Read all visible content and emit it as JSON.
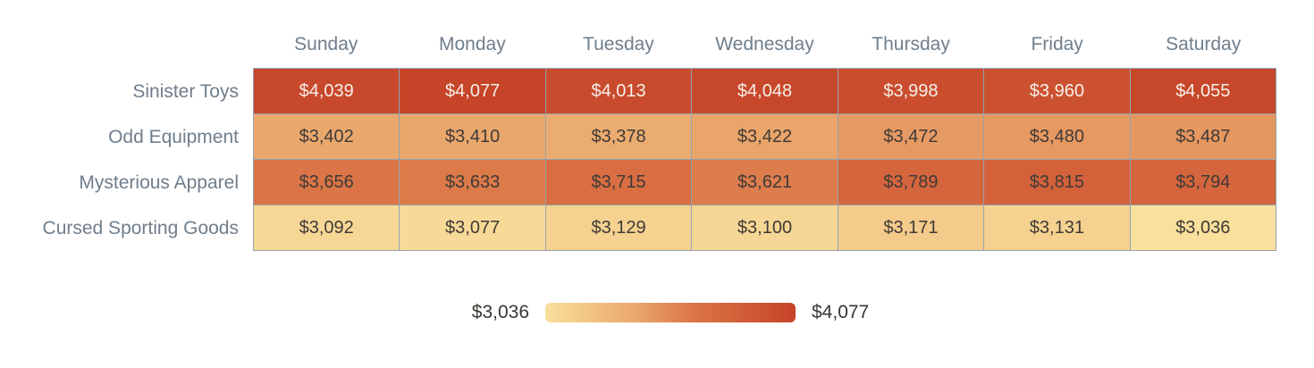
{
  "chart_data": {
    "type": "heatmap",
    "columns": [
      "Sunday",
      "Monday",
      "Tuesday",
      "Wednesday",
      "Thursday",
      "Friday",
      "Saturday"
    ],
    "rows": [
      {
        "label": "Sinister Toys",
        "values": [
          4039,
          4077,
          4013,
          4048,
          3998,
          3960,
          4055
        ]
      },
      {
        "label": "Odd Equipment",
        "values": [
          3402,
          3410,
          3378,
          3422,
          3472,
          3480,
          3487
        ]
      },
      {
        "label": "Mysterious Apparel",
        "values": [
          3656,
          3633,
          3715,
          3621,
          3789,
          3815,
          3794
        ]
      },
      {
        "label": "Cursed Sporting Goods",
        "values": [
          3092,
          3077,
          3129,
          3100,
          3171,
          3131,
          3036
        ]
      }
    ],
    "value_prefix": "$",
    "min": 3036,
    "max": 4077,
    "legend": {
      "min_label": "$3,036",
      "max_label": "$4,077"
    },
    "colorscale": [
      {
        "t": 0,
        "color": "#F9E09C"
      },
      {
        "t": 0.36,
        "color": "#EAA76C"
      },
      {
        "t": 0.6,
        "color": "#DB7446"
      },
      {
        "t": 1,
        "color": "#C64428"
      }
    ],
    "dark_text_color": "#3F3A37",
    "light_text_color": "#F7EFEA",
    "light_text_threshold": 0.8,
    "header_text_color": "#6F7E8C",
    "cell_border_color": "#94A3B1"
  }
}
